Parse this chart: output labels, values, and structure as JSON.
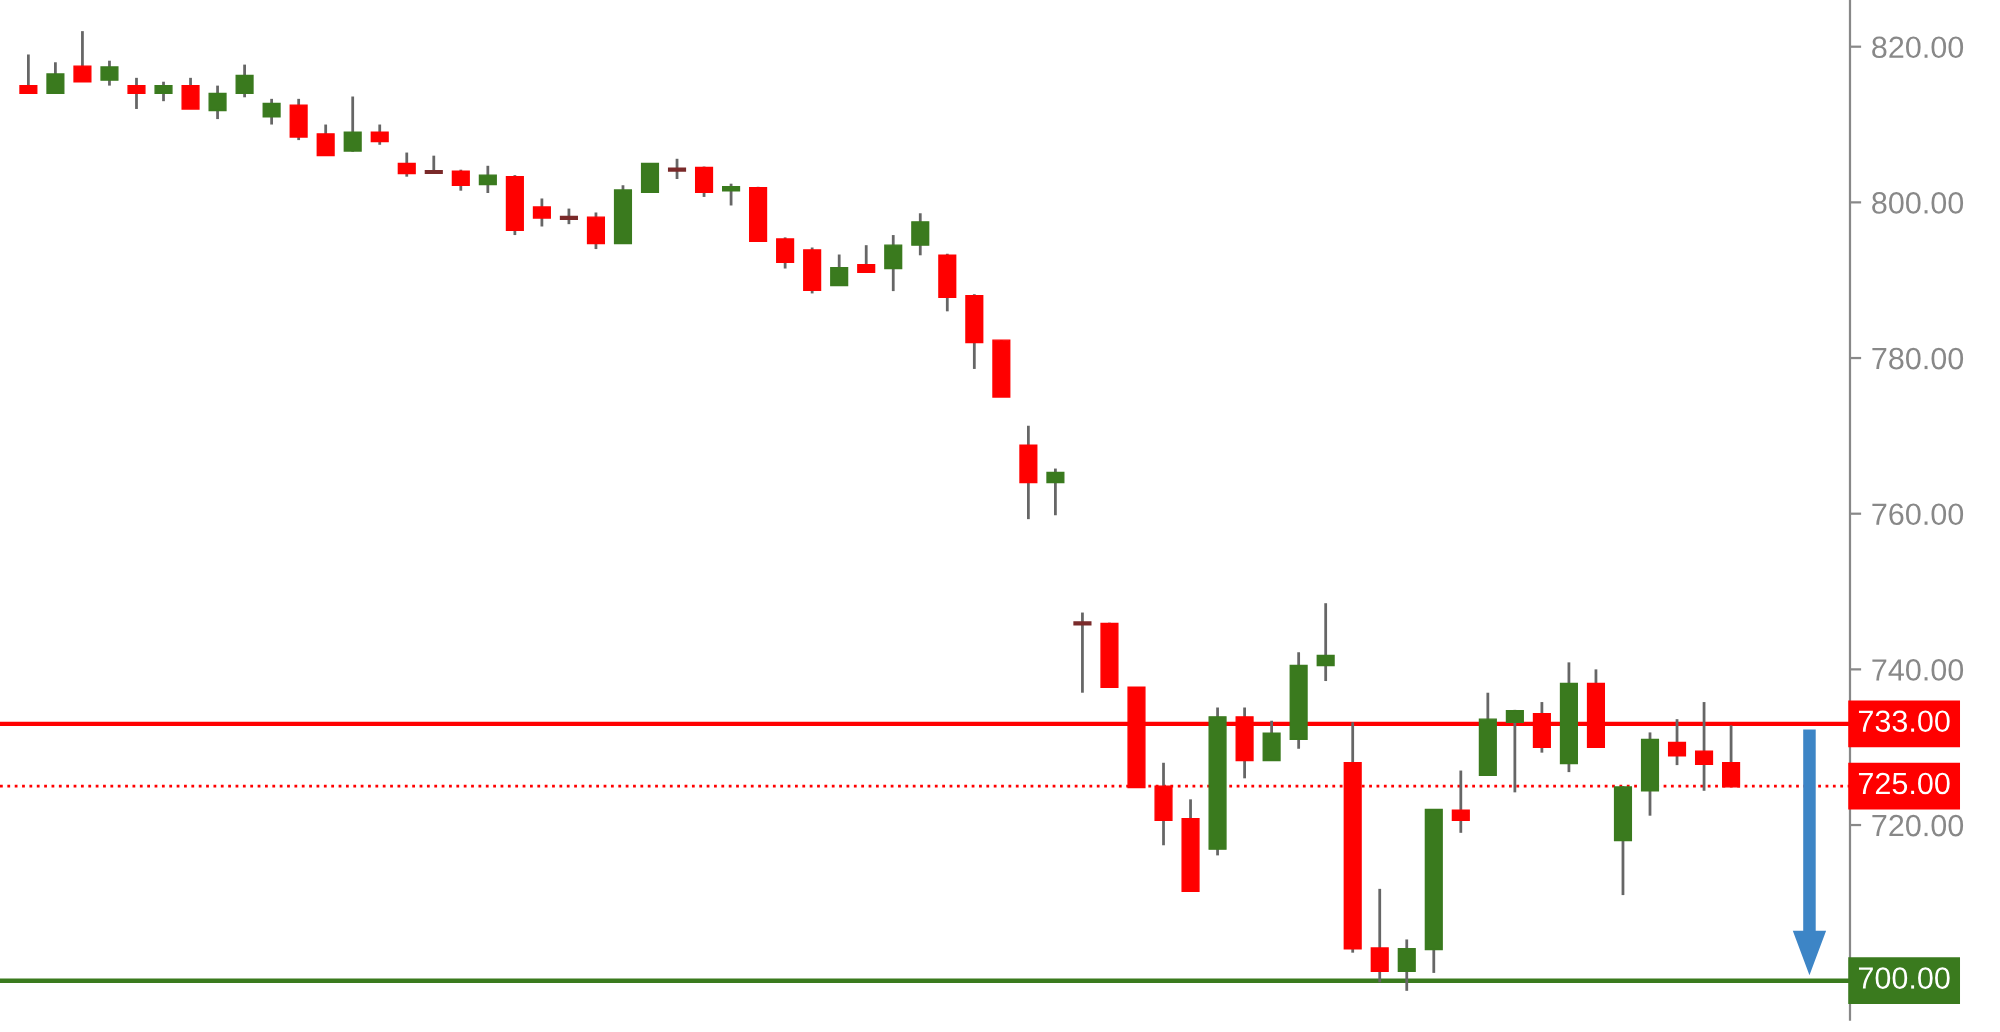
{
  "chart_data": {
    "type": "candlestick",
    "categories": [
      null,
      null,
      null,
      null,
      null,
      null,
      null,
      null,
      null,
      null,
      null,
      null,
      null,
      null,
      null,
      null,
      null,
      null,
      null,
      null,
      null,
      null,
      null,
      null,
      null,
      null,
      null,
      null,
      null,
      null,
      null,
      null,
      null,
      null,
      null,
      null,
      null,
      null,
      null,
      null,
      null,
      null,
      null,
      null,
      null,
      null,
      null,
      null,
      null,
      null,
      null,
      null,
      null,
      null,
      null,
      null,
      null,
      null,
      null,
      null,
      null,
      null,
      null,
      null
    ],
    "ohlc": [
      [
        815,
        819,
        814,
        814
      ],
      [
        814,
        818,
        814,
        816.5
      ],
      [
        817.5,
        822,
        815.5,
        815.5
      ],
      [
        815.7,
        818.2,
        815,
        817.4
      ],
      [
        815,
        816,
        812,
        814
      ],
      [
        814,
        815.5,
        813,
        815
      ],
      [
        815,
        816,
        812,
        812
      ],
      [
        811.8,
        815,
        810.7,
        814
      ],
      [
        814,
        817.7,
        813.5,
        816.3
      ],
      [
        811,
        813.3,
        810,
        812.7
      ],
      [
        812.5,
        813.3,
        808,
        808.4
      ],
      [
        808.8,
        810,
        806,
        806
      ],
      [
        806.6,
        813.6,
        806.5,
        809
      ],
      [
        809,
        810,
        807.4,
        807.8
      ],
      [
        805,
        806.4,
        803.3,
        803.7
      ],
      [
        804.1,
        806,
        803.9,
        803.9
      ],
      [
        804,
        804.2,
        801.5,
        802.2
      ],
      [
        802.3,
        804.7,
        801.2,
        803.5
      ],
      [
        803.3,
        803.5,
        795.8,
        796.4
      ],
      [
        799.4,
        800.5,
        796.9,
        798
      ],
      [
        798.2,
        799.2,
        797.2,
        798
      ],
      [
        798.1,
        798.7,
        794,
        794.7
      ],
      [
        794.7,
        802.2,
        794.7,
        801.6
      ],
      [
        801.3,
        805,
        801.3,
        805
      ],
      [
        804.4,
        805.6,
        803,
        804.2
      ],
      [
        804.5,
        804.6,
        800.7,
        801.3
      ],
      [
        801.5,
        802.4,
        799.6,
        802
      ],
      [
        801.9,
        802,
        795,
        795
      ],
      [
        795.3,
        795.5,
        791.5,
        792.3
      ],
      [
        793.9,
        794.2,
        788.3,
        788.7
      ],
      [
        789.3,
        793.3,
        789.3,
        791.6
      ],
      [
        792,
        794.5,
        791,
        791
      ],
      [
        791.5,
        795.8,
        788.6,
        794.5
      ],
      [
        794.5,
        798.6,
        793.2,
        797.5
      ],
      [
        793.2,
        793.4,
        786,
        787.8
      ],
      [
        788,
        788.2,
        778.6,
        782
      ],
      [
        782.3,
        782.3,
        775,
        775
      ],
      [
        768.8,
        771.3,
        759.3,
        764
      ],
      [
        764,
        765.8,
        759.8,
        765.3
      ],
      [
        746.1,
        747.3,
        737,
        745.9
      ],
      [
        745.9,
        746,
        737.7,
        737.7
      ],
      [
        737.7,
        737.7,
        724.8,
        724.8
      ],
      [
        725,
        728,
        717.4,
        720.6
      ],
      [
        720.8,
        723.3,
        711.5,
        711.5
      ],
      [
        716.9,
        735.1,
        716.1,
        733.9
      ],
      [
        733.9,
        735.1,
        726,
        728.3
      ],
      [
        728.3,
        733.4,
        728.3,
        731.8
      ],
      [
        731,
        742.2,
        729.8,
        740.5
      ],
      [
        740.5,
        748.5,
        738.5,
        741.8
      ],
      [
        728,
        733.2,
        703.6,
        704.1
      ],
      [
        704.2,
        711.8,
        699.8,
        701.2
      ],
      [
        701.2,
        705.3,
        698.7,
        704.1
      ],
      [
        704,
        722,
        701,
        722
      ],
      [
        721.9,
        727,
        719,
        720.6
      ],
      [
        726.4,
        737,
        726.4,
        733.6
      ],
      [
        733.2,
        734.8,
        724.2,
        734.7
      ],
      [
        734.3,
        735.8,
        729.3,
        730
      ],
      [
        727.9,
        740.9,
        726.8,
        738.2
      ],
      [
        738.2,
        740,
        730,
        730
      ],
      [
        718,
        725,
        711,
        724.9
      ],
      [
        724.4,
        731.9,
        721.2,
        731
      ],
      [
        730.6,
        733.6,
        727.7,
        728.9
      ],
      [
        729.5,
        735.8,
        724.4,
        727.8
      ],
      [
        728,
        732.8,
        724.9,
        724.9
      ]
    ],
    "colors": [
      "#ff0000",
      "#3a7a1e",
      "#ff0000",
      "#3a7a1e",
      "#ff0000",
      "#3a7a1e",
      "#ff0000",
      "#3a7a1e",
      "#3a7a1e",
      "#3a7a1e",
      "#ff0000",
      "#ff0000",
      "#3a7a1e",
      "#ff0000",
      "#ff0000",
      "#7a2a2a",
      "#ff0000",
      "#3a7a1e",
      "#ff0000",
      "#ff0000",
      "#7a2a2a",
      "#ff0000",
      "#3a7a1e",
      "#3a7a1e",
      "#7a2a2a",
      "#ff0000",
      "#3a7a1e",
      "#ff0000",
      "#ff0000",
      "#ff0000",
      "#3a7a1e",
      "#ff0000",
      "#3a7a1e",
      "#3a7a1e",
      "#ff0000",
      "#ff0000",
      "#ff0000",
      "#ff0000",
      "#3a7a1e",
      "#7a2a2a",
      "#ff0000",
      "#ff0000",
      "#ff0000",
      "#ff0000",
      "#3a7a1e",
      "#ff0000",
      "#3a7a1e",
      "#3a7a1e",
      "#3a7a1e",
      "#ff0000",
      "#ff0000",
      "#3a7a1e",
      "#3a7a1e",
      "#ff0000",
      "#3a7a1e",
      "#3a7a1e",
      "#ff0000",
      "#3a7a1e",
      "#ff0000",
      "#3a7a1e",
      "#3a7a1e",
      "#ff0000",
      "#ff0000",
      "#ff0000"
    ],
    "ylim": [
      695,
      826
    ],
    "yticks": [
      {
        "value": 700,
        "label": null
      },
      {
        "value": 720,
        "label": "720.00"
      },
      {
        "value": 740,
        "label": "740.00"
      },
      {
        "value": 760,
        "label": "760.00"
      },
      {
        "value": 780,
        "label": "780.00"
      },
      {
        "value": 800,
        "label": "800.00"
      },
      {
        "value": 820,
        "label": "820.00"
      }
    ],
    "tick_labels": "y",
    "grid": false,
    "ref_lines": [
      {
        "axis": "y",
        "value": 733,
        "label": "733.00",
        "color": "#ff0000",
        "line_style": "solid"
      },
      {
        "axis": "y",
        "value": 725,
        "label": "725.00",
        "color": "#ff0000",
        "line_style": "dotted"
      },
      {
        "axis": "y",
        "value": 700,
        "label": "700.00",
        "color": "#3a7a1e",
        "line_style": "solid"
      }
    ]
  }
}
